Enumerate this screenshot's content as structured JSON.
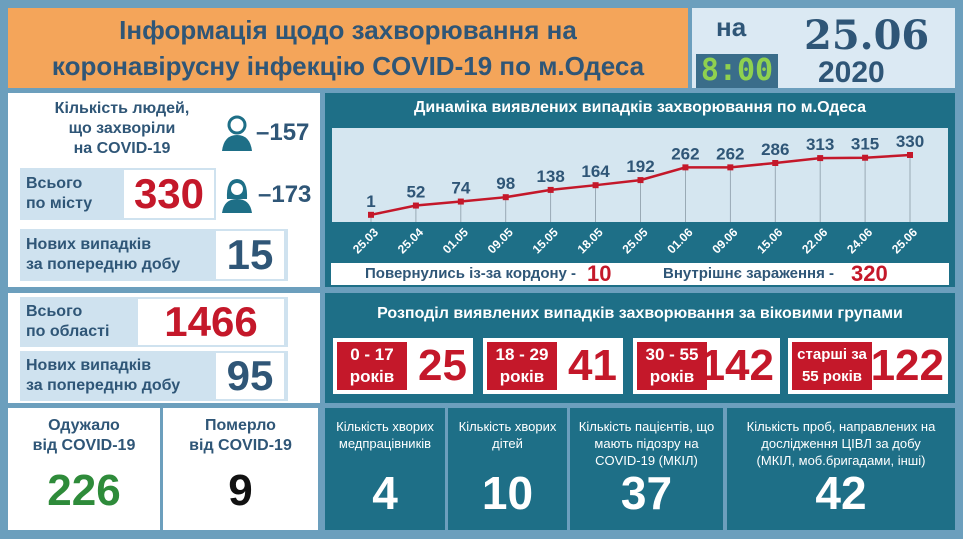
{
  "header": {
    "title_line1": "Інформація щодо захворювання на",
    "title_line2": "коронавірусну інфекцію COVID-19 по м.Одеса",
    "na": "на",
    "time": "8:00",
    "date": "25.06",
    "year": "2020"
  },
  "city": {
    "heading": [
      "Кількість людей,",
      "що захворіли",
      "на COVID-19"
    ],
    "men": "–157",
    "women": "–173",
    "total_label": [
      "Всього",
      "по місту"
    ],
    "total": "330",
    "new_label": [
      "Нових випадків",
      "за попередню добу"
    ],
    "new": "15"
  },
  "region": {
    "total_label": [
      "Всього",
      "по області"
    ],
    "total": "1466",
    "new_label": [
      "Нових випадків",
      "за попередню добу"
    ],
    "new": "95"
  },
  "recovered": {
    "label": [
      "Одужало",
      "від COVID-19"
    ],
    "value": "226"
  },
  "died": {
    "label": [
      "Померло",
      "від COVID-19"
    ],
    "value": "9"
  },
  "chart_data": {
    "type": "line",
    "title": "Динаміка виявлених випадків захворювання по м.Одеса",
    "categories": [
      "25.03",
      "25.04",
      "01.05",
      "09.05",
      "15.05",
      "18.05",
      "25.05",
      "01.06",
      "09.06",
      "15.06",
      "22.06",
      "24.06",
      "25.06"
    ],
    "values": [
      1,
      52,
      74,
      98,
      138,
      164,
      192,
      262,
      262,
      286,
      313,
      315,
      330
    ],
    "line_color": "#c4182a"
  },
  "sources": {
    "abroad_label": "Повернулись із-за кордону -",
    "abroad": "10",
    "local_label": "Внутрішнє зараження -",
    "local": "320"
  },
  "age": {
    "title": "Розподіл виявлених випадків захворювання за віковими групами",
    "groups": [
      {
        "l1": "0 - 17",
        "l2": "років",
        "value": "25"
      },
      {
        "l1": "18 - 29",
        "l2": "років",
        "value": "41"
      },
      {
        "l1": "30 - 55",
        "l2": "років",
        "value": "142"
      },
      {
        "l1": "старші за",
        "l2": "55 років",
        "value": "122"
      }
    ]
  },
  "stats": [
    {
      "label": "Кількість хворих медпрацівників",
      "value": "4"
    },
    {
      "label": "Кількість хворих дітей",
      "value": "10"
    },
    {
      "label": "Кількість пацієнтів, що мають підозру на COVID-19 (МКІЛ)",
      "value": "37"
    },
    {
      "label": "Кількість проб, направлених на дослідження ЦІВЛ за добу (МКІЛ, моб.бригадами, інші)",
      "value": "42"
    }
  ]
}
